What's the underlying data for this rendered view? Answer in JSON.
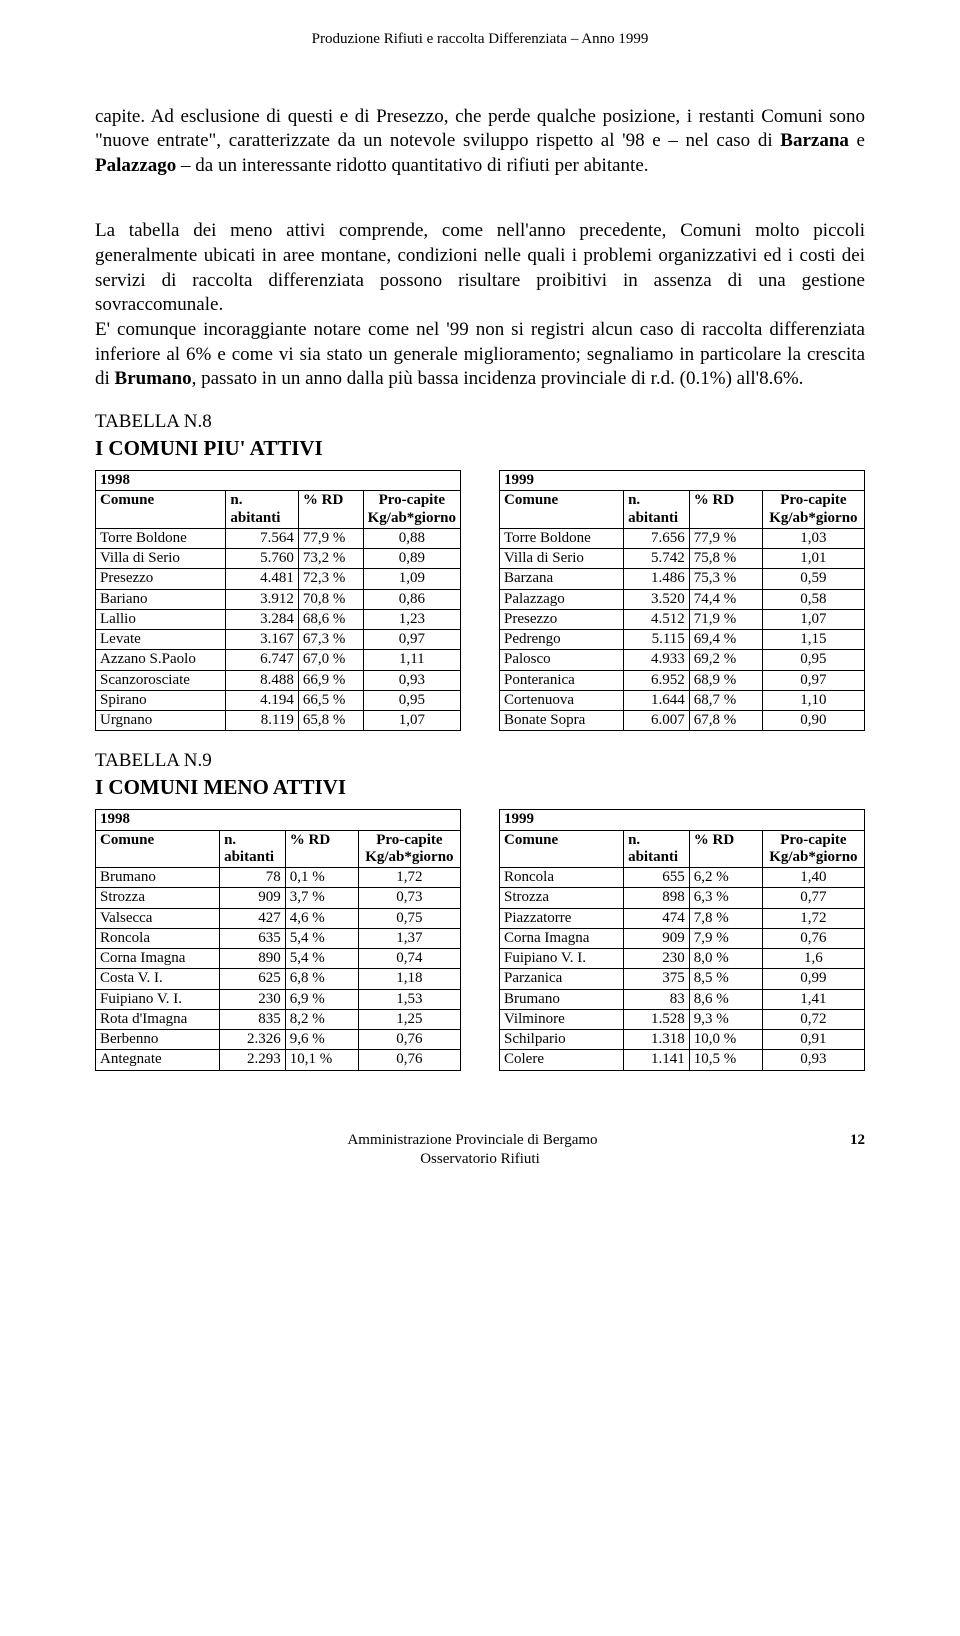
{
  "header_line": "Produzione Rifiuti e raccolta Differenziata – Anno 1999",
  "para1_pre": "capite. Ad esclusione di questi e di Presezzo, che perde qualche posizione, i restanti Comuni sono \"nuove entrate\", caratterizzate da un notevole sviluppo rispetto al '98 e – nel caso di ",
  "para1_bold1": "Barzana",
  "para1_mid1": " e ",
  "para1_bold2": "Palazzago",
  "para1_post": " – da un interessante ridotto quantitativo di rifiuti per abitante.",
  "para2_pre": "La tabella dei meno attivi comprende, come nell'anno precedente, Comuni molto piccoli generalmente ubicati in aree montane, condizioni nelle quali i problemi organizzativi ed i costi dei servizi di raccolta differenziata possono risultare proibitivi in assenza di una gestione sovraccomunale.\nE' comunque incoraggiante notare come nel '99 non si registri alcun caso di raccolta differenziata inferiore al 6% e come vi sia stato un generale miglioramento; segnaliamo in particolare la crescita di ",
  "para2_bold1": "Brumano",
  "para2_post": ", passato in un anno dalla più bassa incidenza provinciale di r.d. (0.1%) all'8.6%.",
  "tabella8_label": "TABELLA N.8",
  "tabella8_title": "I COMUNI PIU' ATTIVI",
  "tabella9_label": "TABELLA N.9",
  "tabella9_title": "I COMUNI MENO ATTIVI",
  "hdr_comune": "Comune",
  "hdr_abitanti_inline": "n. abitanti",
  "hdr_n": "n.",
  "hdr_abitanti": "abitanti",
  "hdr_rd": "% RD",
  "hdr_pro1": "Pro-capite",
  "hdr_pro2": "Kg/ab*giorno",
  "y1998": "1998",
  "y1999": "1999",
  "t8_1998": [
    {
      "c": "Torre Boldone",
      "n": "7.564",
      "r": "77,9 %",
      "p": "0,88"
    },
    {
      "c": "Villa di Serio",
      "n": "5.760",
      "r": "73,2 %",
      "p": "0,89"
    },
    {
      "c": "Presezzo",
      "n": "4.481",
      "r": "72,3 %",
      "p": "1,09"
    },
    {
      "c": "Bariano",
      "n": "3.912",
      "r": "70,8 %",
      "p": "0,86"
    },
    {
      "c": "Lallio",
      "n": "3.284",
      "r": "68,6 %",
      "p": "1,23"
    },
    {
      "c": "Levate",
      "n": "3.167",
      "r": "67,3 %",
      "p": "0,97"
    },
    {
      "c": "Azzano S.Paolo",
      "n": "6.747",
      "r": "67,0 %",
      "p": "1,11"
    },
    {
      "c": "Scanzorosciate",
      "n": "8.488",
      "r": "66,9 %",
      "p": "0,93"
    },
    {
      "c": "Spirano",
      "n": "4.194",
      "r": "66,5 %",
      "p": "0,95"
    },
    {
      "c": "Urgnano",
      "n": "8.119",
      "r": "65,8 %",
      "p": "1,07"
    }
  ],
  "t8_1999": [
    {
      "c": "Torre Boldone",
      "n": "7.656",
      "r": "77,9 %",
      "p": "1,03"
    },
    {
      "c": "Villa di Serio",
      "n": "5.742",
      "r": "75,8 %",
      "p": "1,01"
    },
    {
      "c": "Barzana",
      "n": "1.486",
      "r": "75,3 %",
      "p": "0,59"
    },
    {
      "c": "Palazzago",
      "n": "3.520",
      "r": "74,4 %",
      "p": "0,58"
    },
    {
      "c": "Presezzo",
      "n": "4.512",
      "r": "71,9 %",
      "p": "1,07"
    },
    {
      "c": "Pedrengo",
      "n": "5.115",
      "r": "69,4 %",
      "p": "1,15"
    },
    {
      "c": "Palosco",
      "n": "4.933",
      "r": "69,2 %",
      "p": "0,95"
    },
    {
      "c": "Ponteranica",
      "n": "6.952",
      "r": "68,9 %",
      "p": "0,97"
    },
    {
      "c": "Cortenuova",
      "n": "1.644",
      "r": "68,7 %",
      "p": "1,10"
    },
    {
      "c": "Bonate Sopra",
      "n": "6.007",
      "r": "67,8 %",
      "p": "0,90"
    }
  ],
  "t9_1998": [
    {
      "c": "Brumano",
      "n": "78",
      "r": "0,1 %",
      "p": "1,72"
    },
    {
      "c": "Strozza",
      "n": "909",
      "r": "3,7 %",
      "p": "0,73"
    },
    {
      "c": "Valsecca",
      "n": "427",
      "r": "4,6 %",
      "p": "0,75"
    },
    {
      "c": "Roncola",
      "n": "635",
      "r": "5,4 %",
      "p": "1,37"
    },
    {
      "c": "Corna Imagna",
      "n": "890",
      "r": "5,4 %",
      "p": "0,74"
    },
    {
      "c": "Costa V. I.",
      "n": "625",
      "r": "6,8 %",
      "p": "1,18"
    },
    {
      "c": "Fuipiano V. I.",
      "n": "230",
      "r": "6,9 %",
      "p": "1,53"
    },
    {
      "c": "Rota d'Imagna",
      "n": "835",
      "r": "8,2 %",
      "p": "1,25"
    },
    {
      "c": "Berbenno",
      "n": "2.326",
      "r": "9,6 %",
      "p": "0,76"
    },
    {
      "c": "Antegnate",
      "n": "2.293",
      "r": "10,1 %",
      "p": "0,76"
    }
  ],
  "t9_1999": [
    {
      "c": "Roncola",
      "n": "655",
      "r": "6,2 %",
      "p": "1,40"
    },
    {
      "c": "Strozza",
      "n": "898",
      "r": "6,3 %",
      "p": "0,77"
    },
    {
      "c": "Piazzatorre",
      "n": "474",
      "r": "7,8 %",
      "p": "1,72"
    },
    {
      "c": "Corna Imagna",
      "n": "909",
      "r": "7,9 %",
      "p": "0,76"
    },
    {
      "c": "Fuipiano V. I.",
      "n": "230",
      "r": "8,0 %",
      "p": "1,6"
    },
    {
      "c": "Parzanica",
      "n": "375",
      "r": "8,5 %",
      "p": "0,99"
    },
    {
      "c": "Brumano",
      "n": "83",
      "r": "8,6 %",
      "p": "1,41"
    },
    {
      "c": "Vilminore",
      "n": "1.528",
      "r": "9,3 %",
      "p": "0,72"
    },
    {
      "c": "Schilpario",
      "n": "1.318",
      "r": "10,0 %",
      "p": "0,91"
    },
    {
      "c": "Colere",
      "n": "1.141",
      "r": "10,5 %",
      "p": "0,93"
    }
  ],
  "footer_line1": "Amministrazione Provinciale di Bergamo",
  "footer_line2": "Osservatorio Rifiuti",
  "page_num": "12",
  "colwidths_a": {
    "c": "36%",
    "n": "20%",
    "r": "18%",
    "p": "26%"
  },
  "colwidths_b": {
    "c": "34%",
    "n": "18%",
    "r": "20%",
    "p": "28%"
  }
}
